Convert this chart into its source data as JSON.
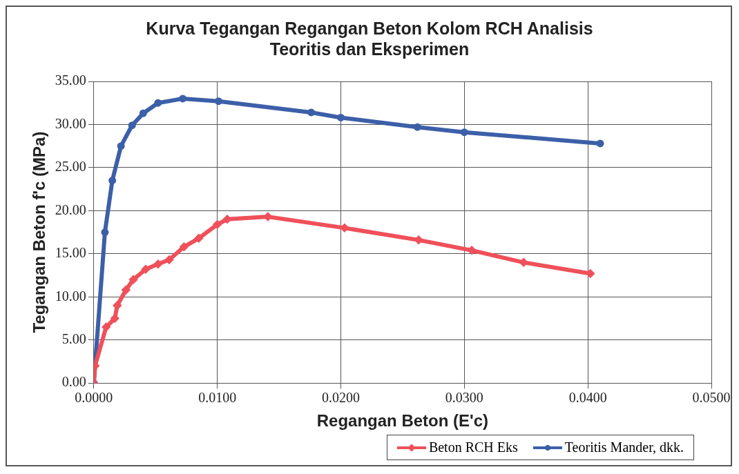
{
  "chart_data": {
    "type": "line",
    "title": "Kurva Tegangan Regangan Beton Kolom RCH Analisis\nTeoritis dan  Eksperimen",
    "xlabel": "Regangan Beton (E'c)",
    "ylabel": "Tegangan Beton f'c (MPa)",
    "xlim": [
      0,
      0.05
    ],
    "xticks": [
      {
        "value": 0,
        "label": "0.0000"
      },
      {
        "value": 0.01,
        "label": "0.0100"
      },
      {
        "value": 0.02,
        "label": "0.0200"
      },
      {
        "value": 0.03,
        "label": "0.0300"
      },
      {
        "value": 0.04,
        "label": "0.0400"
      },
      {
        "value": 0.05,
        "label": "0.0500"
      }
    ],
    "ylim": [
      0,
      35
    ],
    "yticks": [
      {
        "value": 0,
        "label": "0.00"
      },
      {
        "value": 5,
        "label": "5.00"
      },
      {
        "value": 10,
        "label": "10.00"
      },
      {
        "value": 15,
        "label": "15.00"
      },
      {
        "value": 20,
        "label": "20.00"
      },
      {
        "value": 25,
        "label": "25.00"
      },
      {
        "value": 30,
        "label": "30.00"
      },
      {
        "value": 35,
        "label": "35.00"
      }
    ],
    "grid": true,
    "legend": "bottom right",
    "line_style": "solid",
    "series": [
      {
        "name": "Beton RCH Eks",
        "color": "#f0505a",
        "marker": "diamond",
        "x": [
          0,
          0.0001,
          0.001,
          0.0017,
          0.0019,
          0.0026,
          0.0032,
          0.0042,
          0.0052,
          0.0061,
          0.0073,
          0.0085,
          0.01,
          0.0108,
          0.0141,
          0.0203,
          0.0263,
          0.0306,
          0.0348,
          0.0402
        ],
        "values": [
          0,
          2,
          6.5,
          7.5,
          9,
          10.8,
          12,
          13.2,
          13.8,
          14.3,
          15.8,
          16.8,
          18.4,
          19,
          19.3,
          18,
          16.6,
          15.4,
          14,
          12.7
        ]
      },
      {
        "name": "Teoritis Mander, dkk.",
        "color": "#3c5fa8",
        "marker": "circle",
        "x": [
          0,
          0.0009,
          0.0015,
          0.0022,
          0.0031,
          0.004,
          0.0052,
          0.0072,
          0.0101,
          0.0176,
          0.02,
          0.0262,
          0.03,
          0.041
        ],
        "values": [
          0,
          17.5,
          23.5,
          27.5,
          29.9,
          31.3,
          32.5,
          33,
          32.7,
          31.4,
          30.8,
          29.7,
          29.1,
          27.8
        ]
      }
    ]
  }
}
